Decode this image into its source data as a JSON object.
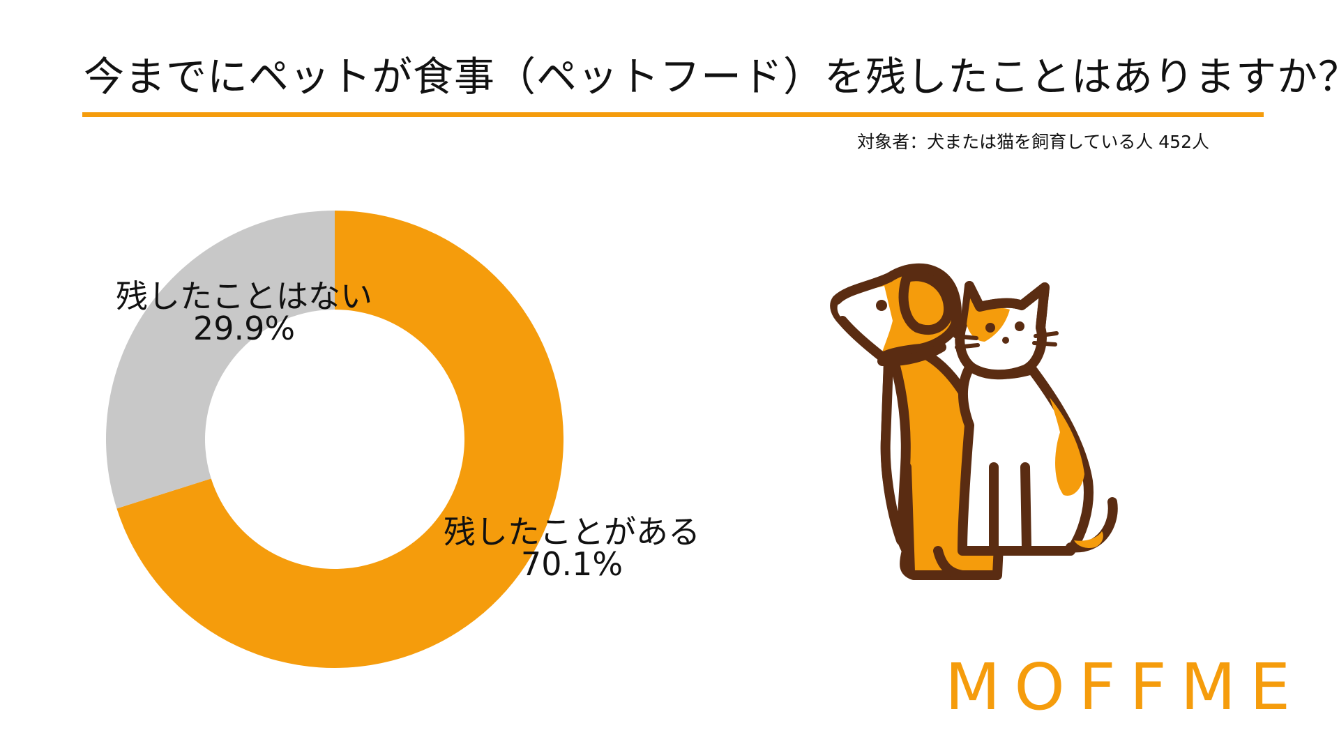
{
  "page": {
    "title": "今までにペットが食事（ペットフード）を残したことはありますか？",
    "subtitle": "対象者：犬または猫を飼育している人 452人",
    "logo": "MOFFME"
  },
  "colors": {
    "accent": "#F59C0C",
    "gray": "#C8C8C8",
    "outline": "#5A2C12",
    "white": "#FFFFFF"
  },
  "illustration": {
    "icon": "dog-and-cat-illustration"
  },
  "chart_data": {
    "type": "pie",
    "donut": true,
    "start": "top",
    "direction": "clockwise",
    "title": "今までにペットが食事（ペットフード）を残したことはありますか？",
    "slices": [
      {
        "label": "残したことがある",
        "value": 70.1,
        "value_label": "70.1%",
        "color": "#F59C0C"
      },
      {
        "label": "残したことはない",
        "value": 29.9,
        "value_label": "29.9%",
        "color": "#C8C8C8"
      }
    ]
  }
}
